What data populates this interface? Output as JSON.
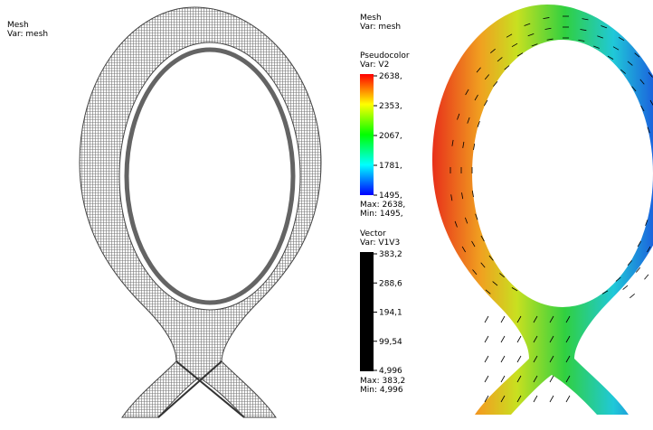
{
  "left_panel": {
    "plot": "Mesh",
    "var": "Var: mesh"
  },
  "right_panel": {
    "plot": "Mesh",
    "var": "Var: mesh",
    "pseudocolor": {
      "title": "Pseudocolor",
      "var": "Var: V2",
      "ticks": [
        "2638,",
        "2353,",
        "2067,",
        "1781,",
        "1495,"
      ],
      "max": "Max:  2638,",
      "min": "Min:  1495,"
    },
    "vector": {
      "title": "Vector",
      "var": "Var: V1V3",
      "ticks": [
        "383,2",
        "288,6",
        "194,1",
        "99,54",
        "4,996"
      ],
      "max": "Max:  383,2",
      "min": "Min:  4,996"
    }
  }
}
